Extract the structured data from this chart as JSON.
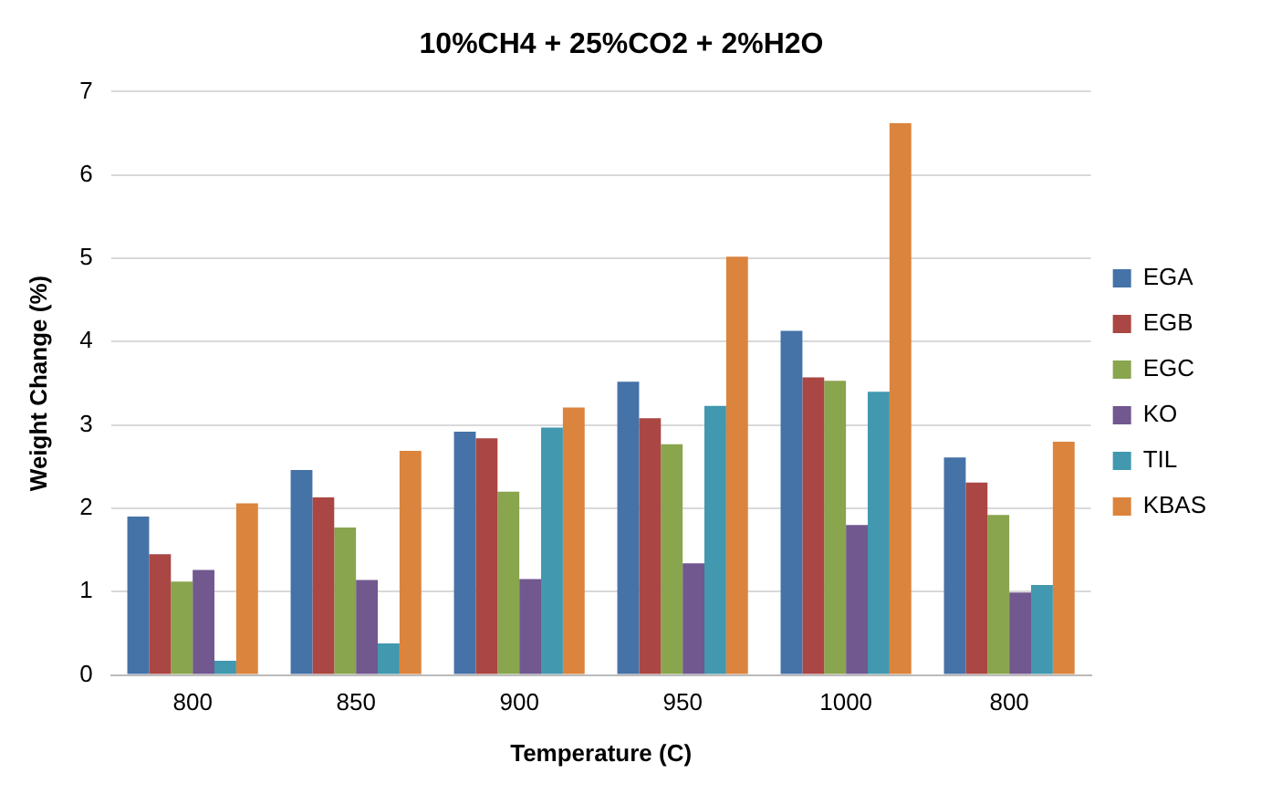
{
  "chart_data": {
    "type": "bar",
    "title": "10%CH4 + 25%CO2 + 2%H2O",
    "xlabel": "Temperature (C)",
    "ylabel": "Weight Change (%)",
    "categories": [
      "800",
      "850",
      "900",
      "950",
      "1000",
      "800"
    ],
    "series": [
      {
        "name": "EGA",
        "color": "#4572a7",
        "values": [
          1.9,
          2.46,
          2.92,
          3.52,
          4.13,
          2.61
        ]
      },
      {
        "name": "EGB",
        "color": "#aa4643",
        "values": [
          1.45,
          2.13,
          2.84,
          3.08,
          3.57,
          2.31
        ]
      },
      {
        "name": "EGC",
        "color": "#89a54e",
        "values": [
          1.12,
          1.77,
          2.2,
          2.77,
          3.53,
          1.92
        ]
      },
      {
        "name": "KO",
        "color": "#71588f",
        "values": [
          1.26,
          1.14,
          1.15,
          1.34,
          1.8,
          0.99
        ]
      },
      {
        "name": "TIL",
        "color": "#4198af",
        "values": [
          0.17,
          0.38,
          2.97,
          3.23,
          3.4,
          1.08
        ]
      },
      {
        "name": "KBAS",
        "color": "#db843d",
        "values": [
          2.06,
          2.69,
          3.21,
          5.02,
          6.62,
          2.8
        ]
      }
    ],
    "ylim": [
      0,
      7
    ],
    "yticks": [
      0,
      1,
      2,
      3,
      4,
      5,
      6,
      7
    ],
    "grid": "y",
    "legend": "right"
  }
}
